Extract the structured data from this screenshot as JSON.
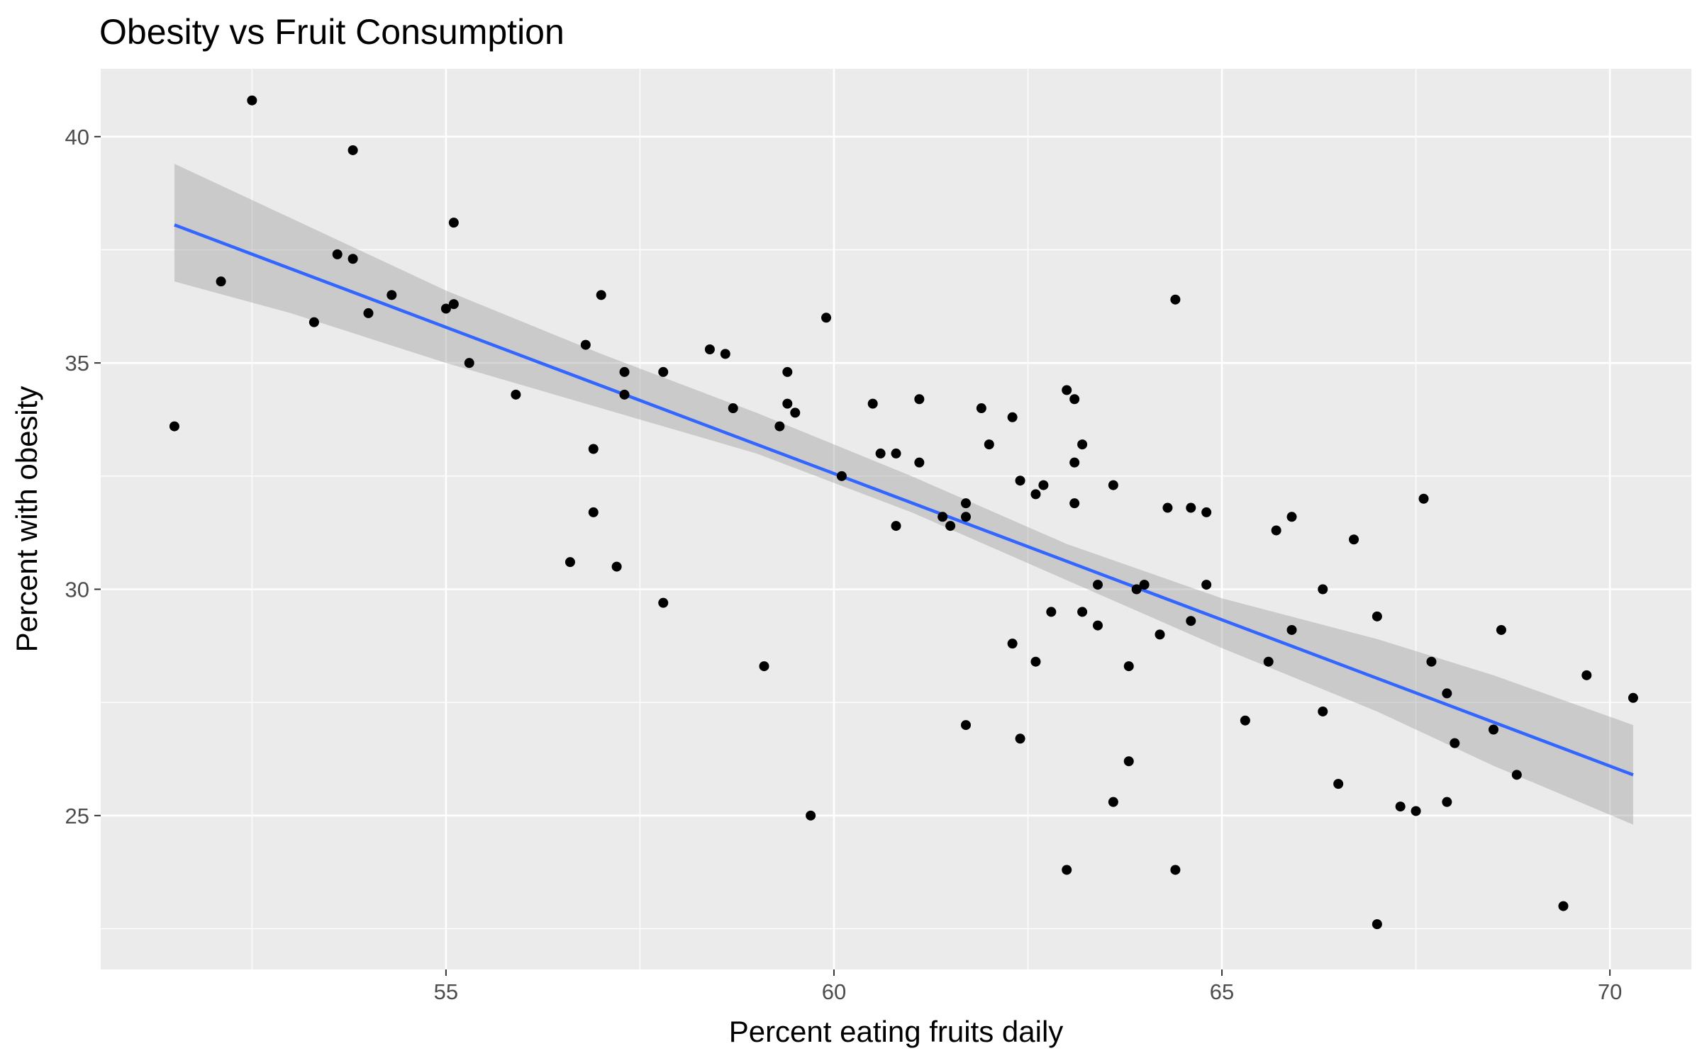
{
  "chart_data": {
    "type": "scatter",
    "title": "Obesity vs Fruit Consumption",
    "xlabel": "Percent eating fruits daily",
    "ylabel": "Percent with obesity",
    "xlim": [
      50.55,
      71.05
    ],
    "ylim": [
      21.6,
      41.5
    ],
    "x_ticks": [
      55,
      60,
      65,
      70
    ],
    "x_tick_labels": [
      "55",
      "60",
      "65",
      "70"
    ],
    "x_minor_ticks": [
      52.5,
      57.5,
      62.5,
      67.5
    ],
    "y_ticks": [
      25,
      30,
      35,
      40
    ],
    "y_tick_labels": [
      "25",
      "30",
      "35",
      "40"
    ],
    "y_minor_ticks": [
      22.5,
      27.5,
      32.5,
      37.5
    ],
    "grid": true,
    "colors": {
      "panel": "#ebebeb",
      "grid": "#ffffff",
      "points": "#000000",
      "fit_line": "#3366ff",
      "ribbon": "#999999",
      "tick_label": "#4d4d4d",
      "tick_mark": "#333333"
    },
    "fit": {
      "method": "lm",
      "x_range": [
        51.5,
        70.3
      ],
      "line_y": [
        38.05,
        25.9
      ],
      "ci": [
        {
          "x": 51.5,
          "lo": 36.8,
          "hi": 39.4
        },
        {
          "x": 53.0,
          "lo": 36.1,
          "hi": 38.2
        },
        {
          "x": 55.0,
          "lo": 35.0,
          "hi": 36.6
        },
        {
          "x": 57.0,
          "lo": 34.0,
          "hi": 35.2
        },
        {
          "x": 59.0,
          "lo": 33.0,
          "hi": 33.9
        },
        {
          "x": 61.0,
          "lo": 31.7,
          "hi": 32.5
        },
        {
          "x": 63.0,
          "lo": 30.2,
          "hi": 31.0
        },
        {
          "x": 65.0,
          "lo": 28.7,
          "hi": 29.8
        },
        {
          "x": 67.0,
          "lo": 27.3,
          "hi": 28.9
        },
        {
          "x": 68.5,
          "lo": 26.1,
          "hi": 28.1
        },
        {
          "x": 70.3,
          "lo": 24.8,
          "hi": 27.0
        }
      ]
    },
    "points": [
      {
        "x": 51.5,
        "y": 33.6
      },
      {
        "x": 52.1,
        "y": 36.8
      },
      {
        "x": 52.5,
        "y": 40.8
      },
      {
        "x": 53.3,
        "y": 35.9
      },
      {
        "x": 53.6,
        "y": 37.4
      },
      {
        "x": 53.8,
        "y": 37.3
      },
      {
        "x": 53.8,
        "y": 39.7
      },
      {
        "x": 54.0,
        "y": 36.1
      },
      {
        "x": 54.3,
        "y": 36.5
      },
      {
        "x": 55.0,
        "y": 36.2
      },
      {
        "x": 55.1,
        "y": 36.3
      },
      {
        "x": 55.1,
        "y": 38.1
      },
      {
        "x": 55.3,
        "y": 35.0
      },
      {
        "x": 55.9,
        "y": 34.3
      },
      {
        "x": 56.6,
        "y": 30.6
      },
      {
        "x": 56.8,
        "y": 35.4
      },
      {
        "x": 56.9,
        "y": 33.1
      },
      {
        "x": 56.9,
        "y": 31.7
      },
      {
        "x": 57.0,
        "y": 36.5
      },
      {
        "x": 57.2,
        "y": 30.5
      },
      {
        "x": 57.3,
        "y": 34.8
      },
      {
        "x": 57.3,
        "y": 34.3
      },
      {
        "x": 57.8,
        "y": 34.8
      },
      {
        "x": 57.8,
        "y": 29.7
      },
      {
        "x": 58.4,
        "y": 35.3
      },
      {
        "x": 58.6,
        "y": 35.2
      },
      {
        "x": 58.7,
        "y": 34.0
      },
      {
        "x": 59.1,
        "y": 28.3
      },
      {
        "x": 59.3,
        "y": 33.6
      },
      {
        "x": 59.4,
        "y": 34.1
      },
      {
        "x": 59.4,
        "y": 34.8
      },
      {
        "x": 59.5,
        "y": 33.9
      },
      {
        "x": 59.7,
        "y": 25.0
      },
      {
        "x": 59.9,
        "y": 36.0
      },
      {
        "x": 60.1,
        "y": 32.5
      },
      {
        "x": 60.5,
        "y": 34.1
      },
      {
        "x": 60.6,
        "y": 33.0
      },
      {
        "x": 60.8,
        "y": 33.0
      },
      {
        "x": 60.8,
        "y": 31.4
      },
      {
        "x": 61.1,
        "y": 34.2
      },
      {
        "x": 61.1,
        "y": 32.8
      },
      {
        "x": 61.4,
        "y": 31.6
      },
      {
        "x": 61.5,
        "y": 31.4
      },
      {
        "x": 61.7,
        "y": 31.9
      },
      {
        "x": 61.7,
        "y": 31.6
      },
      {
        "x": 61.7,
        "y": 27.0
      },
      {
        "x": 61.9,
        "y": 34.0
      },
      {
        "x": 62.0,
        "y": 33.2
      },
      {
        "x": 62.3,
        "y": 33.8
      },
      {
        "x": 62.3,
        "y": 28.8
      },
      {
        "x": 62.4,
        "y": 32.4
      },
      {
        "x": 62.4,
        "y": 26.7
      },
      {
        "x": 62.6,
        "y": 32.1
      },
      {
        "x": 62.6,
        "y": 28.4
      },
      {
        "x": 62.7,
        "y": 32.3
      },
      {
        "x": 62.8,
        "y": 29.5
      },
      {
        "x": 63.0,
        "y": 34.4
      },
      {
        "x": 63.0,
        "y": 23.8
      },
      {
        "x": 63.1,
        "y": 34.2
      },
      {
        "x": 63.1,
        "y": 32.8
      },
      {
        "x": 63.1,
        "y": 31.9
      },
      {
        "x": 63.2,
        "y": 33.2
      },
      {
        "x": 63.2,
        "y": 29.5
      },
      {
        "x": 63.4,
        "y": 30.1
      },
      {
        "x": 63.4,
        "y": 29.2
      },
      {
        "x": 63.6,
        "y": 32.3
      },
      {
        "x": 63.6,
        "y": 25.3
      },
      {
        "x": 63.8,
        "y": 28.3
      },
      {
        "x": 63.8,
        "y": 26.2
      },
      {
        "x": 63.9,
        "y": 30.0
      },
      {
        "x": 64.0,
        "y": 30.1
      },
      {
        "x": 64.2,
        "y": 29.0
      },
      {
        "x": 64.3,
        "y": 31.8
      },
      {
        "x": 64.4,
        "y": 36.4
      },
      {
        "x": 64.4,
        "y": 23.8
      },
      {
        "x": 64.6,
        "y": 31.8
      },
      {
        "x": 64.6,
        "y": 29.3
      },
      {
        "x": 64.8,
        "y": 31.7
      },
      {
        "x": 64.8,
        "y": 30.1
      },
      {
        "x": 65.3,
        "y": 27.1
      },
      {
        "x": 65.6,
        "y": 28.4
      },
      {
        "x": 65.7,
        "y": 31.3
      },
      {
        "x": 65.9,
        "y": 31.6
      },
      {
        "x": 65.9,
        "y": 29.1
      },
      {
        "x": 66.3,
        "y": 30.0
      },
      {
        "x": 66.3,
        "y": 27.3
      },
      {
        "x": 66.5,
        "y": 25.7
      },
      {
        "x": 66.7,
        "y": 31.1
      },
      {
        "x": 67.0,
        "y": 29.4
      },
      {
        "x": 67.0,
        "y": 22.6
      },
      {
        "x": 67.3,
        "y": 25.2
      },
      {
        "x": 67.5,
        "y": 25.1
      },
      {
        "x": 67.6,
        "y": 32.0
      },
      {
        "x": 67.7,
        "y": 28.4
      },
      {
        "x": 67.9,
        "y": 27.7
      },
      {
        "x": 67.9,
        "y": 25.3
      },
      {
        "x": 68.0,
        "y": 26.6
      },
      {
        "x": 68.5,
        "y": 26.9
      },
      {
        "x": 68.6,
        "y": 29.1
      },
      {
        "x": 68.8,
        "y": 25.9
      },
      {
        "x": 69.4,
        "y": 23.0
      },
      {
        "x": 69.7,
        "y": 28.1
      },
      {
        "x": 70.3,
        "y": 27.6
      }
    ]
  }
}
